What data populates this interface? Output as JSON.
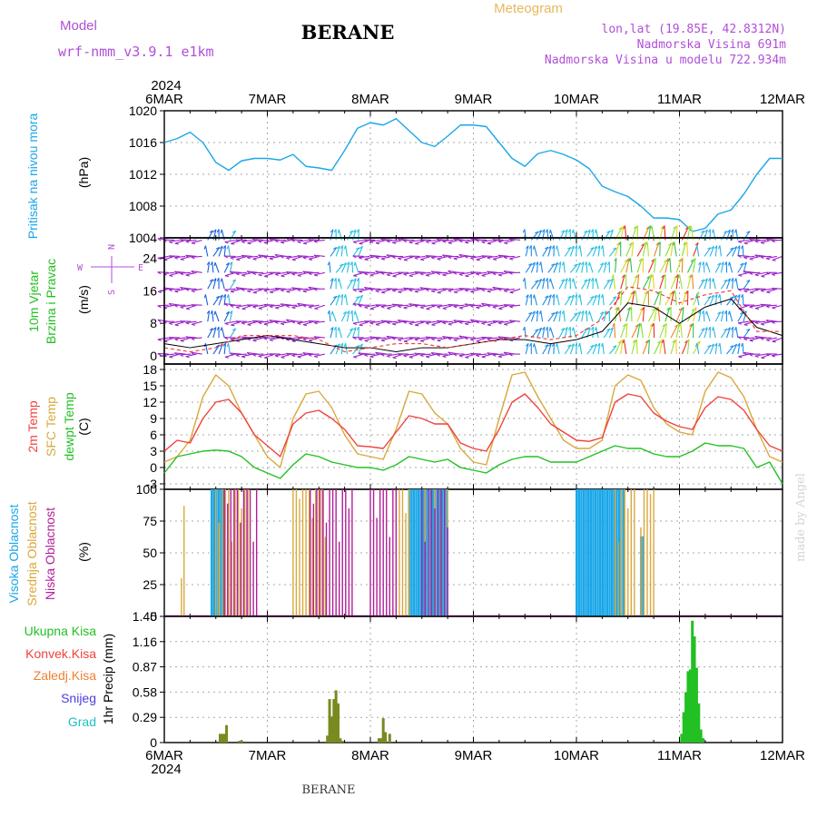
{
  "header": {
    "model_label": "Model",
    "model_name": "wrf-nmm_v3.9.1 e1km",
    "station": "BERANE",
    "meteogram": "Meteogram",
    "lonlat": "lon,lat (19.85E, 42.8312N)",
    "elev": "Nadmorska Visina 691m",
    "elev_model": "Nadmorska Visina u modelu 722.934m"
  },
  "footer": {
    "station": "BERANE",
    "credit": "made by Angel"
  },
  "colors": {
    "pressure": "#1aa7e8",
    "temp2m": "#f0413c",
    "sfc": "#d9a83c",
    "dew": "#22c022",
    "high_cloud": "#1aa7e8",
    "mid_cloud": "#d9a83c",
    "low_cloud": "#b0209a",
    "total_precip": "#22c022",
    "conv_precip": "#f0413c",
    "snow": "#4a3ee0",
    "graupel": "#22c0c0",
    "label_purple": "#b04fd8"
  },
  "x_axis": {
    "year": "2024",
    "ticks": [
      "6MAR",
      "7MAR",
      "8MAR",
      "9MAR",
      "10MAR",
      "11MAR",
      "12MAR"
    ]
  },
  "chart_data": [
    {
      "type": "line",
      "panel": "pressure",
      "ylabel": "Pritisak na nivou mora",
      "unit": "(hPa)",
      "ylim": [
        1004,
        1020
      ],
      "yticks": [
        "1020",
        "1016",
        "1012",
        "1008",
        "1004"
      ],
      "x_hours": [
        0,
        3,
        6,
        9,
        12,
        15,
        18,
        21,
        24,
        27,
        30,
        33,
        36,
        39,
        42,
        45,
        48,
        51,
        54,
        57,
        60,
        63,
        66,
        69,
        72,
        75,
        78,
        81,
        84,
        87,
        90,
        93,
        96,
        99,
        102,
        105,
        108,
        111,
        114,
        117,
        120,
        123,
        126,
        129,
        132,
        135,
        138,
        141,
        144
      ],
      "values": [
        1016,
        1016.5,
        1017.3,
        1016,
        1013.5,
        1012.5,
        1013.7,
        1014,
        1014,
        1013.8,
        1014.5,
        1013,
        1012.8,
        1012.5,
        1015,
        1017.8,
        1018.5,
        1018.2,
        1019,
        1017.5,
        1016,
        1015.5,
        1016.8,
        1018.2,
        1018.2,
        1018,
        1016,
        1014,
        1013,
        1014.6,
        1015,
        1014.5,
        1013.8,
        1012.7,
        1010.5,
        1009.8,
        1009.2,
        1008,
        1006.5,
        1006.5,
        1006.3,
        1004.8,
        1005.2,
        1007,
        1007.5,
        1009.5,
        1012,
        1014,
        1014
      ]
    },
    {
      "type": "line",
      "panel": "wind",
      "ylabel": "10m Vjetar Brzina i Pravac",
      "unit": "(m/s)",
      "ylim": [
        -2,
        29
      ],
      "yticks": [
        "24",
        "16",
        "8",
        "0"
      ],
      "series": [
        {
          "name": "speed",
          "x_hours": [
            0,
            6,
            12,
            18,
            24,
            30,
            36,
            42,
            48,
            54,
            60,
            66,
            72,
            78,
            84,
            90,
            96,
            102,
            108,
            114,
            120,
            126,
            132,
            138,
            144
          ],
          "values": [
            3,
            2,
            3,
            4,
            5,
            4,
            3,
            2,
            2,
            1,
            2,
            2,
            3,
            4,
            4,
            3,
            4,
            6,
            13,
            12,
            8,
            12,
            14,
            7,
            5
          ]
        },
        {
          "name": "gust",
          "x_hours": [
            0,
            6,
            12,
            18,
            24,
            30,
            36,
            42,
            48,
            54,
            60,
            66,
            72,
            78,
            84,
            90,
            96,
            102,
            108,
            114,
            120,
            126,
            132,
            138,
            144
          ],
          "values": [
            2,
            1,
            2,
            5,
            5,
            5,
            4,
            1,
            2,
            3,
            3,
            2,
            3,
            4,
            5,
            4,
            5,
            9,
            17,
            16,
            13,
            15,
            16,
            6,
            6
          ]
        }
      ],
      "direction_legend": [
        "N",
        "E",
        "W",
        "S"
      ]
    },
    {
      "type": "line",
      "panel": "temperature",
      "unit": "(C)",
      "ylim": [
        -4,
        19
      ],
      "yticks": [
        "18",
        "15",
        "12",
        "9",
        "6",
        "3",
        "0",
        "-3"
      ],
      "legend": [
        "2m Temp",
        "SFC Temp",
        "dewpt Temp"
      ],
      "x_hours": [
        0,
        3,
        6,
        9,
        12,
        15,
        18,
        21,
        24,
        27,
        30,
        33,
        36,
        39,
        42,
        45,
        48,
        51,
        54,
        57,
        60,
        63,
        66,
        69,
        72,
        75,
        78,
        81,
        84,
        87,
        90,
        93,
        96,
        99,
        102,
        105,
        108,
        111,
        114,
        117,
        120,
        123,
        126,
        129,
        132,
        135,
        138,
        141,
        144
      ],
      "series": [
        {
          "name": "2m Temp",
          "values": [
            3,
            5,
            4.5,
            9,
            12,
            12.5,
            10,
            6,
            4,
            2,
            8,
            10,
            10.5,
            9,
            7,
            4,
            3.8,
            3.5,
            6.5,
            9.5,
            9,
            8,
            8,
            4.5,
            3.5,
            3,
            7,
            12,
            13.5,
            11,
            8,
            6.5,
            5,
            4.8,
            5.5,
            12,
            13.5,
            13,
            10,
            8.5,
            7.5,
            7,
            11,
            13,
            12.5,
            10.5,
            7,
            4,
            3
          ]
        },
        {
          "name": "SFC Temp",
          "values": [
            1,
            2,
            5,
            13,
            17,
            15,
            10,
            6,
            2,
            0,
            9,
            13.5,
            14,
            11,
            6,
            2.5,
            2,
            1.5,
            7,
            14,
            13.5,
            10,
            8,
            3.5,
            1,
            0.5,
            9,
            17,
            17.5,
            13,
            9,
            5,
            3.5,
            3.5,
            5,
            15,
            17,
            16,
            11,
            8,
            6.5,
            6,
            14,
            17.5,
            16.5,
            13,
            7,
            2,
            1
          ]
        },
        {
          "name": "dewpt Temp",
          "values": [
            -1,
            2,
            2.5,
            3,
            3.2,
            3,
            2,
            0,
            -1,
            -2,
            0.5,
            2.5,
            2,
            1,
            0.5,
            0,
            0,
            -0.5,
            0.5,
            2,
            1.5,
            1,
            1.5,
            0,
            -0.5,
            -1,
            0.5,
            1.5,
            2,
            2,
            1,
            1,
            1,
            2,
            3,
            4,
            3.5,
            3.5,
            2.5,
            2,
            2,
            3,
            4.5,
            4,
            4,
            3.5,
            0,
            1,
            -3
          ]
        }
      ]
    },
    {
      "type": "bar",
      "panel": "cloud",
      "unit": "(%)",
      "ylim": [
        0,
        100
      ],
      "yticks": [
        "100",
        "75",
        "50",
        "25",
        "0"
      ],
      "legend": [
        "Visoka Oblacnost",
        "Srednja Oblacnost",
        "Niska Oblacnost"
      ],
      "series": [
        {
          "name": "Visoka Oblacnost",
          "segments": [
            [
              11,
              14,
              100
            ],
            [
              57,
              66,
              100
            ],
            [
              96,
              107,
              100
            ],
            [
              111,
              112,
              63
            ]
          ]
        },
        {
          "name": "Srednja Oblacnost",
          "segments": [
            [
              4,
              4.6,
              30
            ],
            [
              4.6,
              5.2,
              87
            ],
            [
              12,
              20,
              100
            ],
            [
              30,
              38,
              100
            ],
            [
              54,
              57,
              100
            ],
            [
              60,
              66,
              100
            ],
            [
              105,
              110,
              100
            ],
            [
              111,
              114,
              100
            ]
          ]
        },
        {
          "name": "Niska Oblacnost",
          "segments": [
            [
              14,
              22,
              100
            ],
            [
              34,
              44,
              100
            ],
            [
              48,
              54,
              100
            ],
            [
              60,
              66,
              100
            ]
          ]
        }
      ]
    },
    {
      "type": "bar",
      "panel": "precip",
      "ylabel": "1hr Precip (mm)",
      "ylim": [
        0,
        1.45
      ],
      "yticks": [
        "1.45",
        "1.16",
        "0.87",
        "0.58",
        "0.29",
        "0"
      ],
      "legend": [
        "Ukupna Kisa",
        "Konvek.Kisa",
        "Zaledj.Kisa",
        "Snijeg",
        "Grad"
      ],
      "bars": [
        {
          "x": 13,
          "v": 0.1
        },
        {
          "x": 13.5,
          "v": 0.1
        },
        {
          "x": 14,
          "v": 0.1
        },
        {
          "x": 14.5,
          "v": 0.2
        },
        {
          "x": 17.5,
          "v": 0.02
        },
        {
          "x": 18,
          "v": 0.02
        },
        {
          "x": 38,
          "v": 0.08
        },
        {
          "x": 38.5,
          "v": 0.5
        },
        {
          "x": 39,
          "v": 0.3
        },
        {
          "x": 39.5,
          "v": 0.5
        },
        {
          "x": 40,
          "v": 0.6
        },
        {
          "x": 40.5,
          "v": 0.45
        },
        {
          "x": 41,
          "v": 0.05
        },
        {
          "x": 41.5,
          "v": 0.02
        },
        {
          "x": 50,
          "v": 0.05
        },
        {
          "x": 50.5,
          "v": 0.05
        },
        {
          "x": 51,
          "v": 0.28
        },
        {
          "x": 51.5,
          "v": 0.12
        },
        {
          "x": 52.5,
          "v": 0.1
        },
        {
          "x": 120.5,
          "v": 0.1
        },
        {
          "x": 121,
          "v": 0.35
        },
        {
          "x": 121.5,
          "v": 0.58
        },
        {
          "x": 122,
          "v": 0.82
        },
        {
          "x": 122.5,
          "v": 0.84
        },
        {
          "x": 123,
          "v": 1.4
        },
        {
          "x": 123.5,
          "v": 1.22
        },
        {
          "x": 124,
          "v": 0.86
        },
        {
          "x": 124.5,
          "v": 0.45
        },
        {
          "x": 125,
          "v": 0.15
        },
        {
          "x": 125.5,
          "v": 0.05
        }
      ]
    }
  ]
}
